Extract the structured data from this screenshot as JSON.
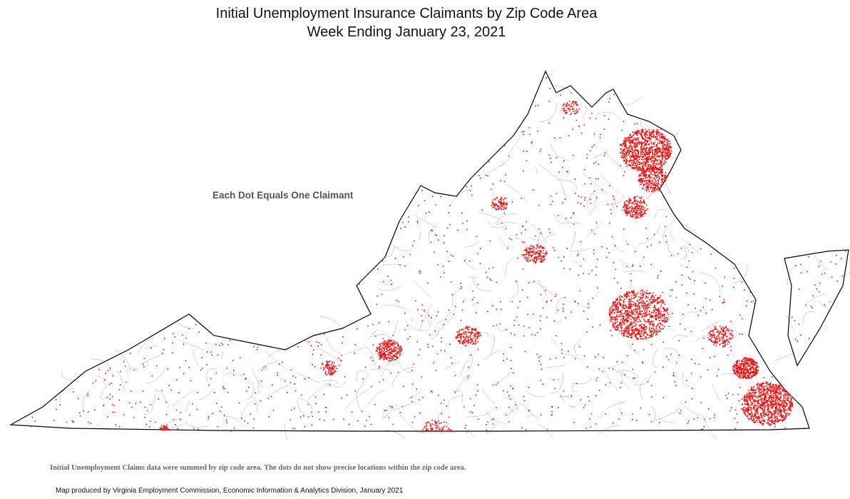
{
  "title": "Initial Unemployment Insurance Claimants by Zip Code Area",
  "subtitle": "Week Ending January 23, 2021",
  "legend": "Each Dot Equals One Claimant",
  "note": "Initial Unemployment Claims data were summed by zip code area. The dots do not show precise locations within the zip code area.",
  "credit": "Map produced by Virginia Employment Commission, Economic Information & Analytics Division,  January 2021",
  "map": {
    "region": "Virginia",
    "dot_color": "#ff0000",
    "boundary_color": "#000000",
    "zip_boundary_color": "#aaaaaa"
  }
}
